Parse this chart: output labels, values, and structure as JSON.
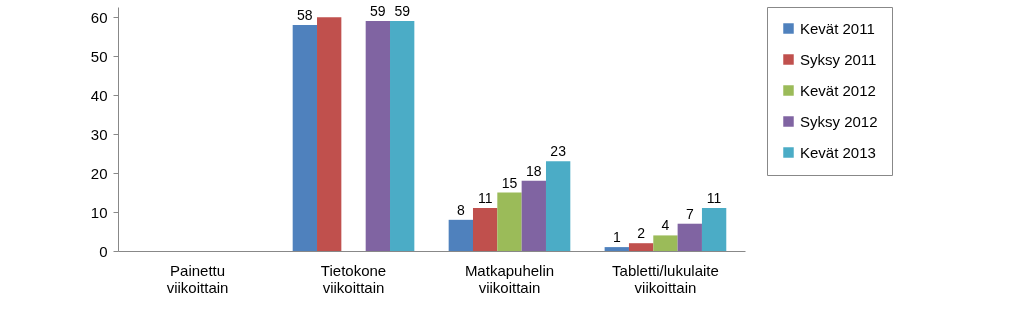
{
  "chart_data": {
    "type": "bar",
    "categories": [
      "Painettu viikoittain",
      "Tietokone viikoittain",
      "Matkapuhelin viikoittain",
      "Tabletti/lukulaite viikoittain"
    ],
    "series": [
      {
        "name": "Kevät 2011",
        "color": "#4f81bd",
        "values": [
          null,
          58,
          8,
          1
        ],
        "value_labels": [
          null,
          "58",
          "8",
          "1"
        ]
      },
      {
        "name": "Syksy 2011",
        "color": "#c0504d",
        "values": [
          null,
          60,
          11,
          2
        ],
        "value_labels": [
          null,
          null,
          "11",
          "2"
        ]
      },
      {
        "name": "Kevät 2012",
        "color": "#9bbb59",
        "values": [
          null,
          null,
          15,
          4
        ],
        "value_labels": [
          null,
          null,
          "15",
          "4"
        ]
      },
      {
        "name": "Syksy 2012",
        "color": "#8064a2",
        "values": [
          null,
          59,
          18,
          7
        ],
        "value_labels": [
          null,
          "59",
          "18",
          "7"
        ]
      },
      {
        "name": "Kevät 2013",
        "color": "#4bacc6",
        "values": [
          null,
          59,
          23,
          11
        ],
        "value_labels": [
          null,
          "59",
          "23",
          "11"
        ]
      }
    ],
    "ylim": [
      0,
      62.6
    ],
    "yticks": [
      0,
      10,
      20,
      30,
      40,
      50,
      60
    ],
    "grid": false,
    "legend": "right"
  }
}
